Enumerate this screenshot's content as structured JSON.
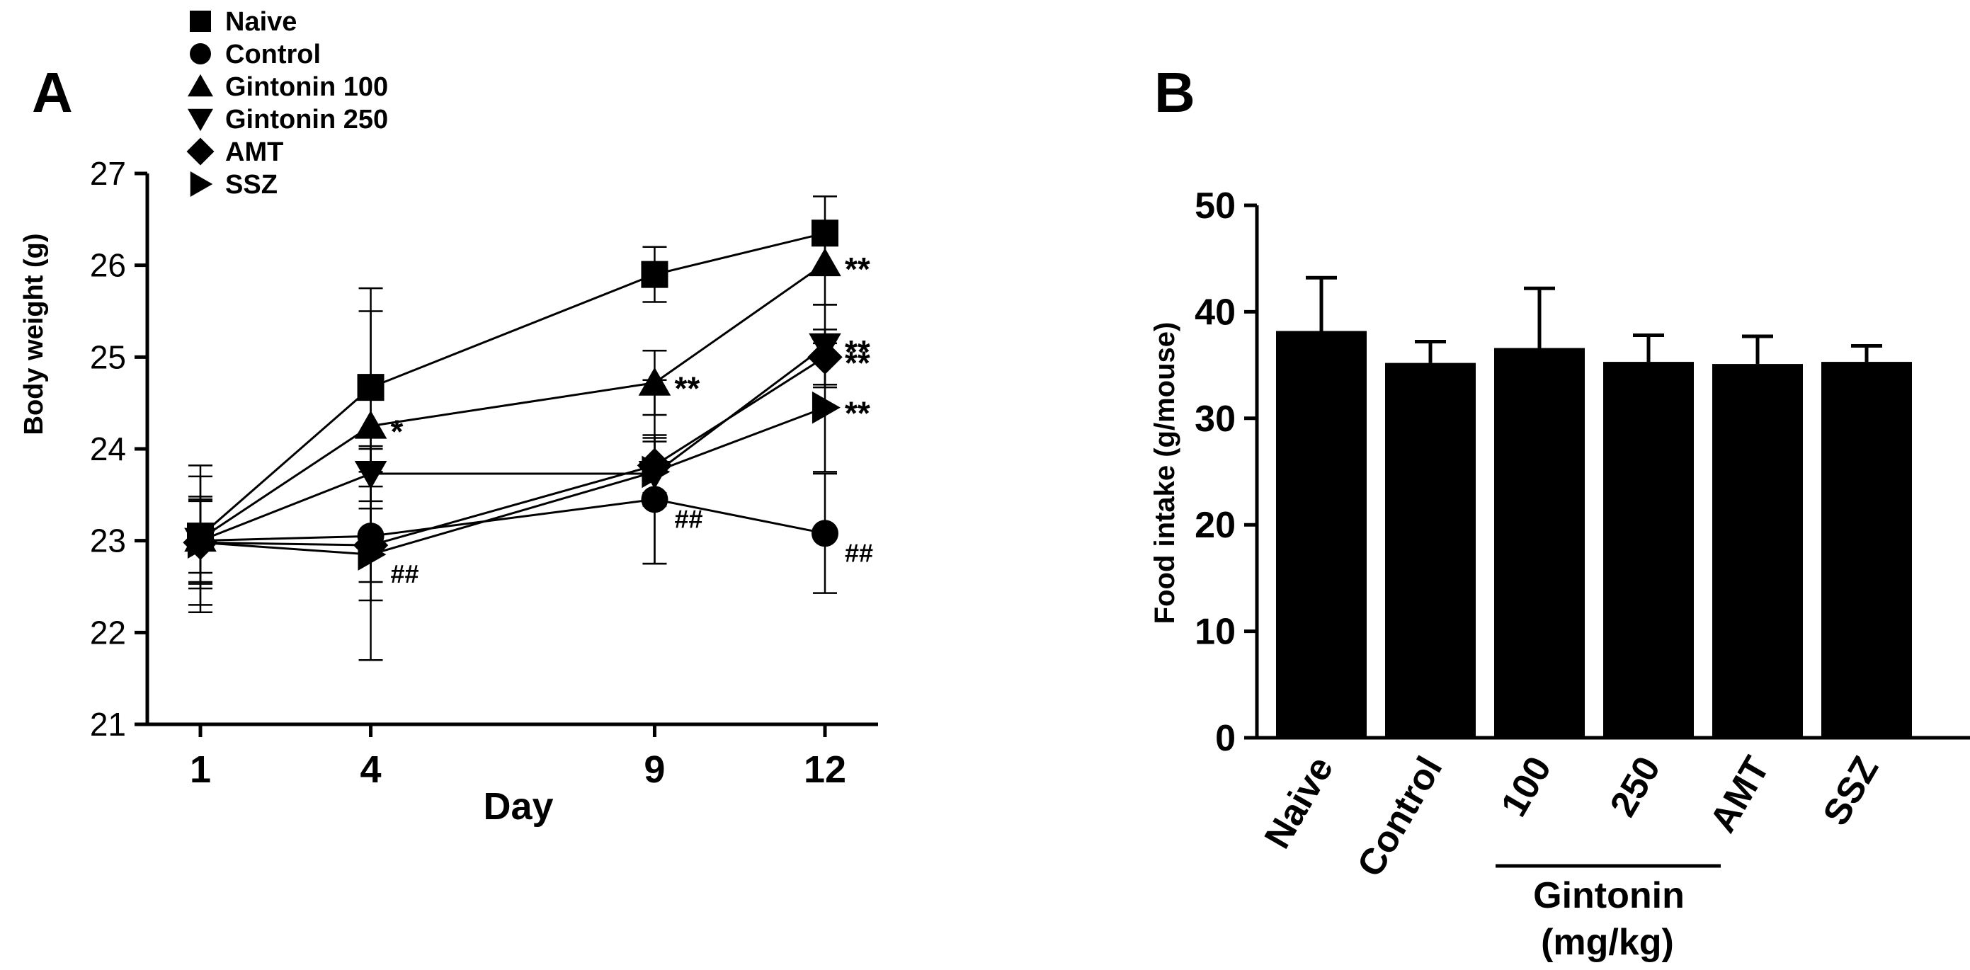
{
  "chart_data": [
    {
      "panel": "A",
      "type": "line",
      "xlabel": "Day",
      "ylabel": "Body weight (g)",
      "ylim": [
        21,
        27
      ],
      "yticks": [
        21,
        22,
        23,
        24,
        25,
        26,
        27
      ],
      "x": [
        1,
        4,
        9,
        12
      ],
      "xtick_labels": [
        "1",
        "4",
        "9",
        "12"
      ],
      "legend_position": "top-left",
      "series": [
        {
          "name": "Naive",
          "marker": "square",
          "values": [
            23.05,
            24.67,
            25.9,
            26.35
          ],
          "errors": [
            0.4,
            1.08,
            0.3,
            0.4
          ],
          "annotations": [
            "",
            "",
            "",
            ""
          ]
        },
        {
          "name": "Control",
          "marker": "circle",
          "values": [
            23.0,
            23.05,
            23.45,
            23.08
          ],
          "errors": [
            0.7,
            0.7,
            0.7,
            0.65
          ],
          "annotations": [
            "",
            "",
            "##",
            "##"
          ]
        },
        {
          "name": "Gintonin 100",
          "marker": "triangle-up",
          "values": [
            23.02,
            24.25,
            24.72,
            26.02
          ],
          "errors": [
            0.8,
            1.25,
            0.35,
            0.45
          ],
          "annotations": [
            "",
            "*",
            "**",
            "**"
          ]
        },
        {
          "name": "Gintonin 250",
          "marker": "triangle-down",
          "values": [
            23.0,
            23.73,
            23.73,
            25.12
          ],
          "errors": [
            0.45,
            0.3,
            0.35,
            0.45
          ],
          "annotations": [
            "",
            "",
            "",
            "**"
          ]
        },
        {
          "name": "AMT",
          "marker": "diamond",
          "values": [
            22.98,
            22.95,
            23.82,
            25.0
          ],
          "errors": [
            0.5,
            0.4,
            0.3,
            0.3
          ],
          "annotations": [
            "",
            "",
            "",
            "**"
          ]
        },
        {
          "name": "SSZ",
          "marker": "triangle-right",
          "values": [
            22.98,
            22.85,
            23.75,
            24.45
          ],
          "errors": [
            0.45,
            1.15,
            1.0,
            0.7
          ],
          "annotations": [
            "",
            "##",
            "",
            "**"
          ]
        }
      ]
    },
    {
      "panel": "B",
      "type": "bar",
      "ylabel": "Food intake (g/mouse)",
      "ylim": [
        0,
        50
      ],
      "yticks": [
        0,
        10,
        20,
        30,
        40,
        50
      ],
      "categories": [
        "Naive",
        "Control",
        "100",
        "250",
        "AMT",
        "SSZ"
      ],
      "values": [
        38.2,
        35.2,
        36.6,
        35.3,
        35.1,
        35.3
      ],
      "errors": [
        5.0,
        2.0,
        5.6,
        2.5,
        2.6,
        1.5
      ],
      "group_label": "Gintonin",
      "group_sublabel": "(mg/kg)"
    }
  ]
}
